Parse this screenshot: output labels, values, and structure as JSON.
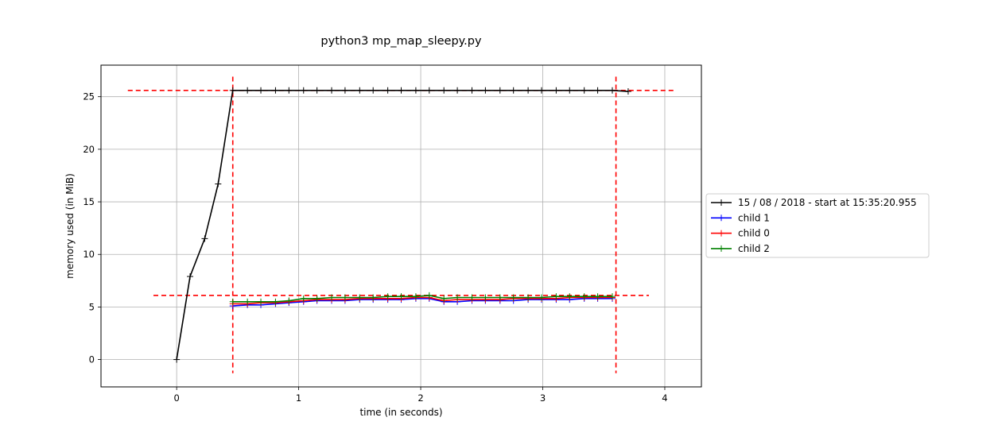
{
  "chart_data": {
    "type": "line",
    "title": "python3 mp_map_sleepy.py",
    "xlabel": "time (in seconds)",
    "ylabel": "memory used (in MiB)",
    "xlim": [
      -0.62,
      4.3
    ],
    "ylim": [
      -2.6,
      28.0
    ],
    "x_ticks": [
      0,
      1,
      2,
      3,
      4
    ],
    "y_ticks": [
      0,
      5,
      10,
      15,
      20,
      25
    ],
    "grid": true,
    "legend_position": "center-right, outside plot",
    "series": [
      {
        "name": "15 / 08 / 2018 - start at 15:35:20.955",
        "color": "#000000",
        "x": [
          0.0,
          0.11,
          0.23,
          0.34,
          0.46,
          0.58,
          0.69,
          0.81,
          0.92,
          1.04,
          1.15,
          1.27,
          1.38,
          1.5,
          1.61,
          1.73,
          1.84,
          1.96,
          2.07,
          2.19,
          2.3,
          2.42,
          2.53,
          2.65,
          2.76,
          2.88,
          2.99,
          3.11,
          3.22,
          3.34,
          3.45,
          3.57,
          3.7
        ],
        "y": [
          0.0,
          7.9,
          11.5,
          16.7,
          25.6,
          25.6,
          25.6,
          25.6,
          25.6,
          25.6,
          25.6,
          25.6,
          25.6,
          25.6,
          25.6,
          25.6,
          25.6,
          25.6,
          25.6,
          25.6,
          25.6,
          25.6,
          25.6,
          25.6,
          25.6,
          25.6,
          25.6,
          25.6,
          25.6,
          25.6,
          25.6,
          25.6,
          25.5
        ]
      },
      {
        "name": "child 1",
        "color": "#0000ff",
        "x": [
          0.46,
          0.58,
          0.69,
          0.81,
          0.92,
          1.04,
          1.15,
          1.27,
          1.38,
          1.5,
          1.61,
          1.73,
          1.84,
          1.96,
          2.07,
          2.19,
          2.3,
          2.42,
          2.53,
          2.65,
          2.76,
          2.88,
          2.99,
          3.11,
          3.22,
          3.34,
          3.45,
          3.57
        ],
        "y": [
          5.1,
          5.2,
          5.2,
          5.3,
          5.4,
          5.5,
          5.6,
          5.6,
          5.6,
          5.7,
          5.7,
          5.7,
          5.7,
          5.8,
          5.8,
          5.5,
          5.5,
          5.6,
          5.6,
          5.6,
          5.6,
          5.7,
          5.7,
          5.7,
          5.7,
          5.8,
          5.8,
          5.8
        ]
      },
      {
        "name": "child 0",
        "color": "#ff0000",
        "x": [
          0.46,
          0.58,
          0.69,
          0.81,
          0.92,
          1.04,
          1.15,
          1.27,
          1.38,
          1.5,
          1.61,
          1.73,
          1.84,
          1.96,
          2.07,
          2.19,
          2.3,
          2.42,
          2.53,
          2.65,
          2.76,
          2.88,
          2.99,
          3.11,
          3.22,
          3.34,
          3.45,
          3.57
        ],
        "y": [
          5.3,
          5.3,
          5.4,
          5.4,
          5.5,
          5.6,
          5.7,
          5.7,
          5.7,
          5.8,
          5.8,
          5.8,
          5.8,
          5.9,
          5.9,
          5.6,
          5.7,
          5.7,
          5.7,
          5.7,
          5.8,
          5.8,
          5.8,
          5.8,
          5.9,
          5.9,
          5.9,
          5.9
        ]
      },
      {
        "name": "child 2",
        "color": "#008000",
        "x": [
          0.46,
          0.58,
          0.69,
          0.81,
          0.92,
          1.04,
          1.15,
          1.27,
          1.38,
          1.5,
          1.61,
          1.73,
          1.84,
          1.96,
          2.07,
          2.19,
          2.3,
          2.42,
          2.53,
          2.65,
          2.76,
          2.88,
          2.99,
          3.11,
          3.22,
          3.34,
          3.45,
          3.57
        ],
        "y": [
          5.5,
          5.5,
          5.5,
          5.5,
          5.6,
          5.8,
          5.8,
          5.9,
          5.9,
          5.9,
          5.9,
          6.0,
          6.0,
          6.0,
          6.1,
          5.8,
          5.9,
          5.9,
          5.9,
          5.9,
          5.9,
          5.9,
          5.9,
          6.0,
          6.0,
          6.0,
          6.0,
          6.0
        ]
      }
    ],
    "reference_lines": [
      {
        "orientation": "horizontal",
        "y": 25.6,
        "color": "#ff0000",
        "style": "dashed",
        "x_range": [
          -0.4,
          4.08
        ]
      },
      {
        "orientation": "horizontal",
        "y": 6.1,
        "color": "#ff0000",
        "style": "dashed",
        "x_range": [
          -0.19,
          3.87
        ]
      },
      {
        "orientation": "vertical",
        "x": 0.46,
        "color": "#ff0000",
        "style": "dashed",
        "y_range": [
          -1.3,
          26.9
        ]
      },
      {
        "orientation": "vertical",
        "x": 3.6,
        "color": "#ff0000",
        "style": "dashed",
        "y_range": [
          -1.3,
          26.9
        ]
      }
    ]
  }
}
